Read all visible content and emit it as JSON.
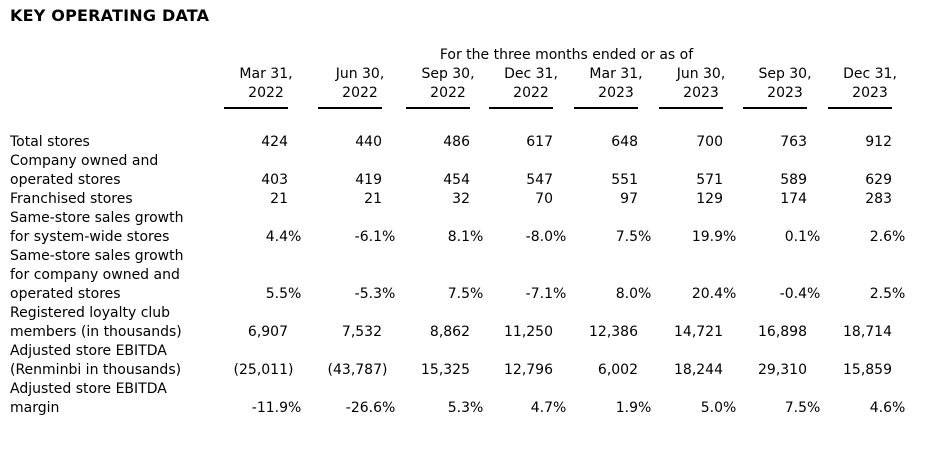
{
  "title": "KEY OPERATING DATA",
  "table": {
    "spanner": "For the three months ended or as of",
    "columns": [
      "Mar 31,\n2022",
      "Jun 30,\n2022",
      "Sep 30,\n2022",
      "Dec 31,\n2022",
      "Mar 31,\n2023",
      "Jun 30,\n2023",
      "Sep 30,\n2023",
      "Dec 31,\n2023"
    ],
    "rows": [
      {
        "label": "Total stores",
        "values": [
          "424",
          "440",
          "486",
          "617",
          "648",
          "700",
          "763",
          "912"
        ]
      },
      {
        "label": "Company owned and\noperated stores",
        "values": [
          "403",
          "419",
          "454",
          "547",
          "551",
          "571",
          "589",
          "629"
        ]
      },
      {
        "label": "Franchised stores",
        "values": [
          "21",
          "21",
          "32",
          "70",
          "97",
          "129",
          "174",
          "283"
        ]
      },
      {
        "label": "Same-store sales growth\nfor system-wide stores",
        "values": [
          "4.4%",
          "-6.1%",
          "8.1%",
          "-8.0%",
          "7.5%",
          "19.9%",
          "0.1%",
          "2.6%"
        ]
      },
      {
        "label": "Same-store sales growth\nfor company owned and\noperated stores",
        "values": [
          "5.5%",
          "-5.3%",
          "7.5%",
          "-7.1%",
          "8.0%",
          "20.4%",
          "-0.4%",
          "2.5%"
        ]
      },
      {
        "label": "Registered loyalty club\nmembers (in thousands)",
        "values": [
          "6,907",
          "7,532",
          "8,862",
          "11,250",
          "12,386",
          "14,721",
          "16,898",
          "18,714"
        ]
      },
      {
        "label": "Adjusted store EBITDA\n(Renminbi in thousands)",
        "values": [
          "(25,011)",
          "(43,787)",
          "15,325",
          "12,796",
          "6,002",
          "18,244",
          "29,310",
          "15,859"
        ]
      },
      {
        "label": "Adjusted store EBITDA\nmargin",
        "values": [
          "-11.9%",
          "-26.6%",
          "5.3%",
          "4.7%",
          "1.9%",
          "5.0%",
          "7.5%",
          "4.6%"
        ]
      }
    ]
  }
}
